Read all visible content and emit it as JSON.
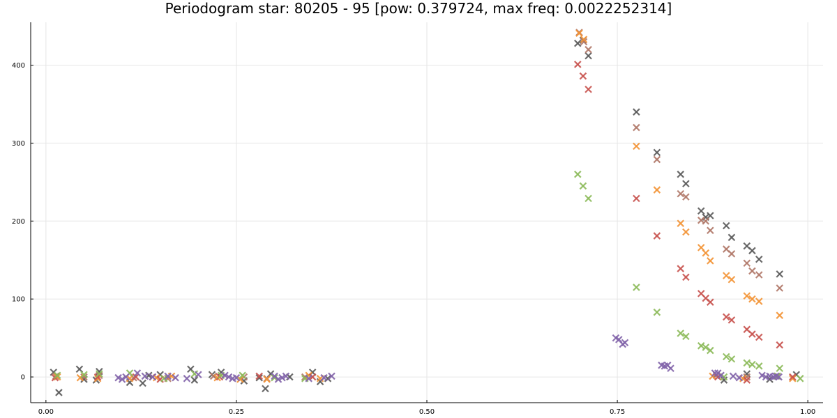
{
  "chart_data": {
    "type": "scatter",
    "title": "Periodogram star: 80205 - 95 [pow: 0.379724, max freq: 0.0022252314]",
    "xlabel": "",
    "ylabel": "",
    "xlim": [
      -0.02,
      1.02
    ],
    "ylim": [
      -33,
      455
    ],
    "grid": true,
    "legend": "none",
    "marker": "x",
    "x_ticks": [
      0.0,
      0.25,
      0.5,
      0.75,
      1.0
    ],
    "x_tick_labels": [
      "0.00",
      "0.25",
      "0.50",
      "0.75",
      "1.00"
    ],
    "y_ticks": [
      0,
      100,
      200,
      300,
      400
    ],
    "y_tick_labels": [
      "0",
      "100",
      "200",
      "300",
      "400"
    ],
    "series": [
      {
        "color": "#5a5a5a",
        "points": [
          [
            0.01,
            6
          ],
          [
            0.017,
            -20
          ],
          [
            0.044,
            10
          ],
          [
            0.05,
            -3
          ],
          [
            0.066,
            -4
          ],
          [
            0.07,
            7
          ],
          [
            0.11,
            -7
          ],
          [
            0.127,
            -8
          ],
          [
            0.135,
            2
          ],
          [
            0.15,
            3
          ],
          [
            0.19,
            10
          ],
          [
            0.195,
            -4
          ],
          [
            0.218,
            3
          ],
          [
            0.23,
            6
          ],
          [
            0.26,
            -5
          ],
          [
            0.28,
            -1
          ],
          [
            0.288,
            -15
          ],
          [
            0.295,
            4
          ],
          [
            0.32,
            0
          ],
          [
            0.35,
            6
          ],
          [
            0.36,
            -6
          ],
          [
            0.37,
            -2
          ],
          [
            0.698,
            428
          ],
          [
            0.705,
            432
          ],
          [
            0.712,
            412
          ],
          [
            0.775,
            340
          ],
          [
            0.802,
            288
          ],
          [
            0.833,
            260
          ],
          [
            0.84,
            248
          ],
          [
            0.86,
            213
          ],
          [
            0.866,
            205
          ],
          [
            0.872,
            207
          ],
          [
            0.893,
            194
          ],
          [
            0.9,
            179
          ],
          [
            0.92,
            168
          ],
          [
            0.927,
            162
          ],
          [
            0.936,
            151
          ],
          [
            0.963,
            132
          ],
          [
            0.88,
            3
          ],
          [
            0.89,
            -4
          ],
          [
            0.92,
            4
          ],
          [
            0.95,
            -3
          ],
          [
            0.985,
            3
          ]
        ]
      },
      {
        "color": "#b07868",
        "points": [
          [
            0.013,
            1
          ],
          [
            0.05,
            0
          ],
          [
            0.07,
            2
          ],
          [
            0.115,
            -1
          ],
          [
            0.14,
            0
          ],
          [
            0.16,
            -2
          ],
          [
            0.22,
            1
          ],
          [
            0.26,
            0
          ],
          [
            0.29,
            -2
          ],
          [
            0.34,
            0
          ],
          [
            0.7,
            442
          ],
          [
            0.706,
            430
          ],
          [
            0.712,
            420
          ],
          [
            0.775,
            320
          ],
          [
            0.802,
            279
          ],
          [
            0.833,
            235
          ],
          [
            0.84,
            231
          ],
          [
            0.86,
            201
          ],
          [
            0.866,
            200
          ],
          [
            0.872,
            188
          ],
          [
            0.893,
            164
          ],
          [
            0.9,
            158
          ],
          [
            0.92,
            146
          ],
          [
            0.927,
            136
          ],
          [
            0.936,
            131
          ],
          [
            0.963,
            114
          ],
          [
            0.88,
            2
          ],
          [
            0.92,
            0
          ],
          [
            0.96,
            1
          ]
        ]
      },
      {
        "color": "#f39435",
        "points": [
          [
            0.015,
            0
          ],
          [
            0.045,
            -1
          ],
          [
            0.068,
            -2
          ],
          [
            0.11,
            -2
          ],
          [
            0.145,
            -1
          ],
          [
            0.165,
            1
          ],
          [
            0.225,
            -1
          ],
          [
            0.255,
            -3
          ],
          [
            0.29,
            -3
          ],
          [
            0.345,
            2
          ],
          [
            0.36,
            -2
          ],
          [
            0.7,
            441
          ],
          [
            0.706,
            433
          ],
          [
            0.775,
            296
          ],
          [
            0.802,
            240
          ],
          [
            0.833,
            197
          ],
          [
            0.84,
            186
          ],
          [
            0.86,
            166
          ],
          [
            0.866,
            159
          ],
          [
            0.872,
            149
          ],
          [
            0.893,
            130
          ],
          [
            0.9,
            125
          ],
          [
            0.92,
            104
          ],
          [
            0.927,
            100
          ],
          [
            0.936,
            97
          ],
          [
            0.963,
            79
          ],
          [
            0.875,
            1
          ],
          [
            0.915,
            -2
          ],
          [
            0.98,
            -2
          ]
        ]
      },
      {
        "color": "#c8524e",
        "points": [
          [
            0.012,
            -1
          ],
          [
            0.068,
            0
          ],
          [
            0.118,
            0
          ],
          [
            0.15,
            -3
          ],
          [
            0.228,
            0
          ],
          [
            0.28,
            1
          ],
          [
            0.35,
            0
          ],
          [
            0.698,
            401
          ],
          [
            0.705,
            386
          ],
          [
            0.712,
            369
          ],
          [
            0.775,
            229
          ],
          [
            0.802,
            181
          ],
          [
            0.833,
            139
          ],
          [
            0.84,
            128
          ],
          [
            0.86,
            107
          ],
          [
            0.866,
            101
          ],
          [
            0.872,
            96
          ],
          [
            0.893,
            77
          ],
          [
            0.9,
            73
          ],
          [
            0.92,
            61
          ],
          [
            0.927,
            55
          ],
          [
            0.936,
            51
          ],
          [
            0.963,
            41
          ],
          [
            0.882,
            0
          ],
          [
            0.92,
            -4
          ],
          [
            0.98,
            0
          ]
        ]
      },
      {
        "color": "#8cba5a",
        "points": [
          [
            0.015,
            2
          ],
          [
            0.05,
            3
          ],
          [
            0.07,
            4
          ],
          [
            0.11,
            5
          ],
          [
            0.155,
            -2
          ],
          [
            0.195,
            4
          ],
          [
            0.23,
            2
          ],
          [
            0.258,
            2
          ],
          [
            0.3,
            -1
          ],
          [
            0.34,
            -2
          ],
          [
            0.698,
            260
          ],
          [
            0.705,
            245
          ],
          [
            0.712,
            229
          ],
          [
            0.775,
            115
          ],
          [
            0.802,
            83
          ],
          [
            0.833,
            56
          ],
          [
            0.84,
            52
          ],
          [
            0.86,
            40
          ],
          [
            0.866,
            38
          ],
          [
            0.872,
            34
          ],
          [
            0.893,
            26
          ],
          [
            0.9,
            23
          ],
          [
            0.92,
            18
          ],
          [
            0.927,
            16
          ],
          [
            0.936,
            14
          ],
          [
            0.963,
            11
          ],
          [
            0.89,
            0
          ],
          [
            0.96,
            1
          ],
          [
            0.99,
            -2
          ]
        ]
      },
      {
        "color": "#8264aa",
        "points": [
          [
            0.095,
            -1
          ],
          [
            0.1,
            -3
          ],
          [
            0.105,
            0
          ],
          [
            0.12,
            5
          ],
          [
            0.13,
            1
          ],
          [
            0.14,
            0
          ],
          [
            0.16,
            1
          ],
          [
            0.17,
            -1
          ],
          [
            0.185,
            -2
          ],
          [
            0.2,
            3
          ],
          [
            0.235,
            2
          ],
          [
            0.24,
            0
          ],
          [
            0.245,
            -2
          ],
          [
            0.25,
            -1
          ],
          [
            0.3,
            1
          ],
          [
            0.305,
            -3
          ],
          [
            0.31,
            -1
          ],
          [
            0.315,
            1
          ],
          [
            0.345,
            -2
          ],
          [
            0.365,
            -1
          ],
          [
            0.375,
            1
          ],
          [
            0.748,
            50
          ],
          [
            0.752,
            48
          ],
          [
            0.757,
            42
          ],
          [
            0.76,
            44
          ],
          [
            0.808,
            15
          ],
          [
            0.812,
            14
          ],
          [
            0.816,
            15
          ],
          [
            0.82,
            11
          ],
          [
            0.878,
            5
          ],
          [
            0.882,
            5
          ],
          [
            0.886,
            2
          ],
          [
            0.902,
            1
          ],
          [
            0.91,
            -1
          ],
          [
            0.94,
            2
          ],
          [
            0.945,
            0
          ],
          [
            0.95,
            1
          ],
          [
            0.955,
            0
          ],
          [
            0.958,
            1
          ],
          [
            0.962,
            0
          ]
        ]
      }
    ]
  }
}
